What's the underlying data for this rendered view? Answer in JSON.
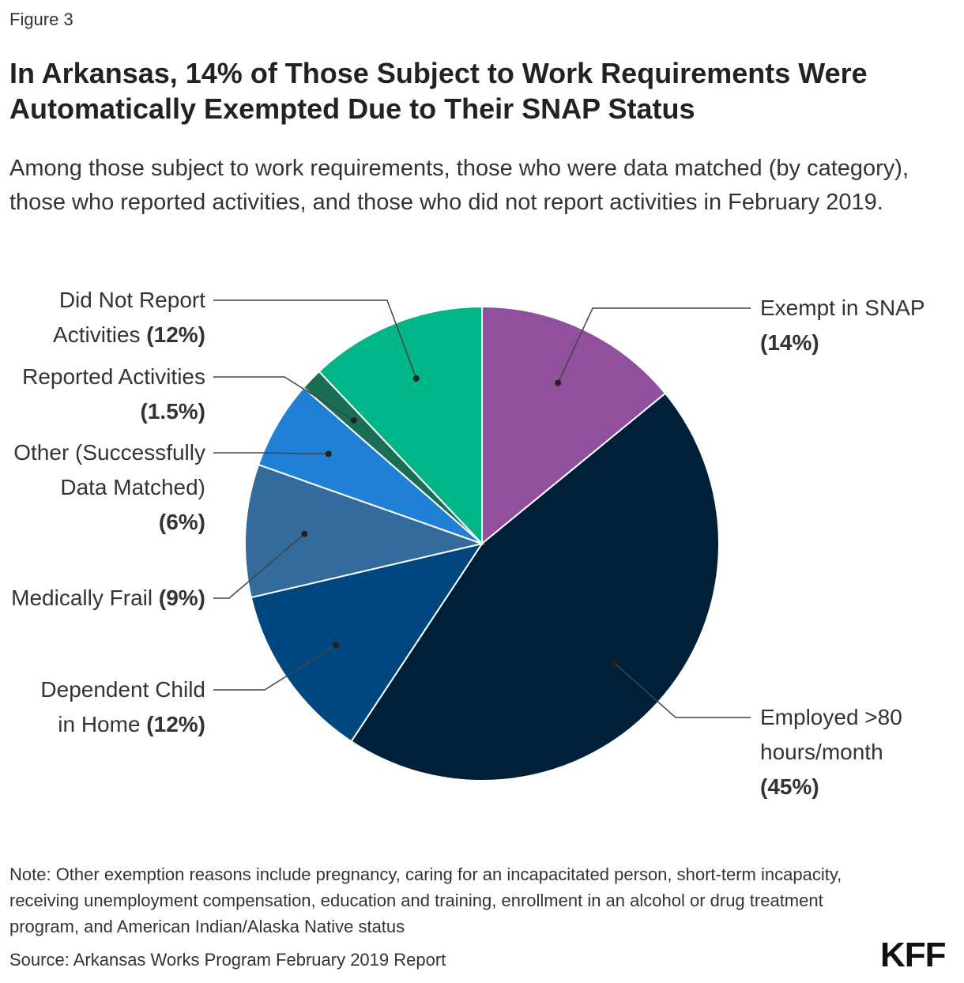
{
  "chart_data": {
    "type": "pie",
    "figure_label": "Figure 3",
    "title": "In Arkansas, 14% of Those Subject to Work Requirements Were Automatically Exempted Due to Their SNAP Status",
    "subtitle": "Among those subject to work requirements, those who were data matched (by category), those who reported activities, and those who did not report activities in February 2019.",
    "categories": [
      "Exempt in SNAP",
      "Employed >80 hours/month",
      "Dependent Child in Home",
      "Medically Frail",
      "Other (Successfully Data Matched)",
      "Reported Activities",
      "Did Not Report Activities"
    ],
    "values": [
      14,
      45,
      12,
      9,
      6,
      1.5,
      12
    ],
    "value_labels": [
      "(14%)",
      "(45%)",
      "(12%)",
      "(9%)",
      "(6%)",
      "(1.5%)",
      "(12%)"
    ],
    "colors": [
      "#90509e",
      "#001f38",
      "#00477f",
      "#336b9c",
      "#1f80d6",
      "#1b6e56",
      "#00b587"
    ],
    "note": "Note: Other exemption reasons include pregnancy, caring for an incapacitated person, short-term incapacity, receiving unemployment compensation, education and training, enrollment in an alcohol or drug treatment program, and American Indian/Alaska Native status",
    "source": "Source: Arkansas Works Program February 2019 Report",
    "logo": "KFF"
  }
}
